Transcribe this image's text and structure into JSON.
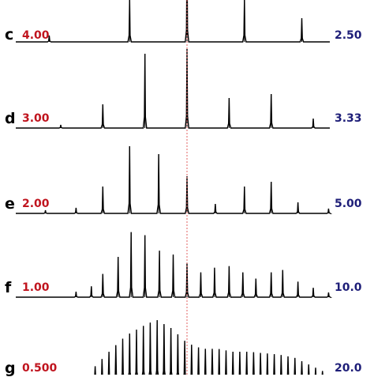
{
  "chart_data": {
    "type": "line",
    "description_note": "",
    "axis_visible": false,
    "grid": false,
    "reference_line_color": "#e06060",
    "trace_color": "#000000",
    "left_value_color": "#c0141e",
    "right_value_color": "#1e1e78",
    "reference_x": 0,
    "x_range": [
      -22,
      22
    ],
    "panels": [
      {
        "label": "c",
        "left_value": "4.00",
        "right_value": "2.50",
        "peaks": [
          [
            -18,
            0.08
          ],
          [
            -7.5,
            0.55
          ],
          [
            0,
            1.0
          ],
          [
            7.5,
            0.55
          ],
          [
            15,
            0.3
          ]
        ]
      },
      {
        "label": "d",
        "left_value": "3.00",
        "right_value": "3.33",
        "peaks": [
          [
            -16.5,
            0.04
          ],
          [
            -11,
            0.3
          ],
          [
            -5.5,
            0.94
          ],
          [
            0,
            1.0
          ],
          [
            5.5,
            0.38
          ],
          [
            11,
            0.43
          ],
          [
            16.5,
            0.12
          ],
          [
            21.5,
            0.04
          ]
        ]
      },
      {
        "label": "e",
        "left_value": "2.00",
        "right_value": "5.00",
        "peaks": [
          [
            -18.5,
            0.04
          ],
          [
            -14.5,
            0.07
          ],
          [
            -11,
            0.34
          ],
          [
            -7.5,
            0.85
          ],
          [
            -3.7,
            0.75
          ],
          [
            0,
            0.47
          ],
          [
            3.7,
            0.12
          ],
          [
            7.5,
            0.34
          ],
          [
            11,
            0.4
          ],
          [
            14.5,
            0.14
          ],
          [
            18.5,
            0.06
          ],
          [
            22,
            0.03
          ]
        ]
      },
      {
        "label": "f",
        "left_value": "1.00",
        "right_value": "10.0",
        "peaks": [
          [
            -14.5,
            0.07
          ],
          [
            -12.5,
            0.14
          ],
          [
            -11,
            0.3
          ],
          [
            -9,
            0.52
          ],
          [
            -7.3,
            0.84
          ],
          [
            -5.5,
            0.8
          ],
          [
            -3.6,
            0.6
          ],
          [
            -1.8,
            0.55
          ],
          [
            0,
            0.44
          ],
          [
            1.8,
            0.32
          ],
          [
            3.6,
            0.38
          ],
          [
            5.5,
            0.4
          ],
          [
            7.3,
            0.32
          ],
          [
            9,
            0.24
          ],
          [
            11,
            0.32
          ],
          [
            12.5,
            0.35
          ],
          [
            14.5,
            0.2
          ],
          [
            16.5,
            0.12
          ],
          [
            18.5,
            0.06
          ],
          [
            20,
            0.03
          ]
        ]
      },
      {
        "label": "g",
        "left_value": "0.500",
        "right_value": "20.0",
        "envelope": [
          [
            -12,
            0.18
          ],
          [
            -10,
            0.4
          ],
          [
            -8,
            0.6
          ],
          [
            -6,
            0.72
          ],
          [
            -4,
            0.82
          ],
          [
            -2,
            0.7
          ],
          [
            0,
            0.5
          ],
          [
            2,
            0.42
          ],
          [
            4,
            0.42
          ],
          [
            6,
            0.38
          ],
          [
            8,
            0.38
          ],
          [
            10,
            0.36
          ],
          [
            12,
            0.34
          ],
          [
            14,
            0.3
          ],
          [
            16,
            0.2
          ],
          [
            18,
            0.1
          ]
        ],
        "peak_spacing": 0.9
      }
    ]
  }
}
